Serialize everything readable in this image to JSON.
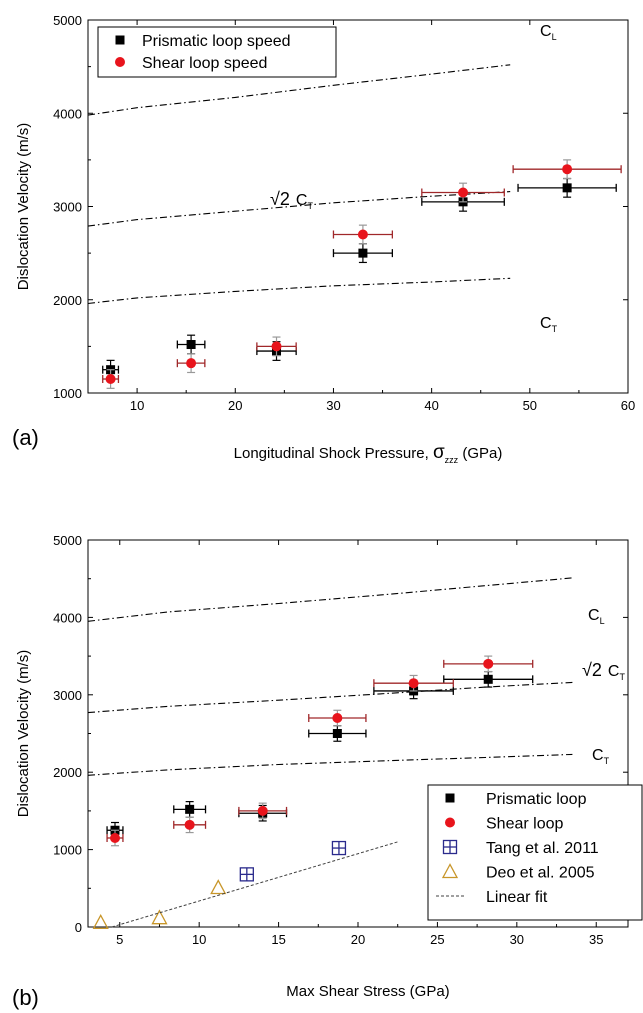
{
  "chart_data": [
    {
      "panel_label": "(a)",
      "type": "scatter",
      "xlabel_text": "Longitudinal Shock Pressure, ",
      "xlabel_symbol": "σ",
      "xlabel_sub": "zzz",
      "xlabel_unit": " (GPa)",
      "ylabel": "Dislocation Velocity (m/s)",
      "xlim": [
        5,
        60
      ],
      "ylim": [
        1000,
        5000
      ],
      "xticks": [
        10,
        20,
        30,
        40,
        50,
        60
      ],
      "yticks": [
        1000,
        2000,
        3000,
        4000,
        5000
      ],
      "grid": false,
      "legend_position": "top-left",
      "series": [
        {
          "name": "Prismatic loop speed",
          "marker": "square",
          "color": "#000000",
          "xerr_color": "#000000",
          "x": [
            7.3,
            15.5,
            24.2,
            33.0,
            43.2,
            53.8
          ],
          "y": [
            1250,
            1520,
            1450,
            2500,
            3050,
            3200
          ],
          "xerr": [
            0.8,
            1.4,
            2.0,
            3.0,
            4.2,
            5.0
          ],
          "yerr": [
            100,
            100,
            100,
            100,
            100,
            100
          ]
        },
        {
          "name": "Shear loop speed",
          "marker": "circle",
          "color": "#e8141c",
          "xerr_color": "#a0282a",
          "x": [
            7.3,
            15.5,
            24.2,
            33.0,
            43.2,
            53.8
          ],
          "y": [
            1150,
            1320,
            1500,
            2700,
            3150,
            3400
          ],
          "xerr": [
            0.8,
            1.4,
            2.0,
            3.0,
            4.2,
            5.5
          ],
          "yerr": [
            100,
            100,
            100,
            100,
            100,
            100
          ]
        }
      ],
      "reference_lines": [
        {
          "label": "C",
          "subscript": "L",
          "prefix": "",
          "x": [
            5,
            10,
            20,
            30,
            40,
            48
          ],
          "y": [
            3980,
            4060,
            4170,
            4300,
            4420,
            4520
          ]
        },
        {
          "label": "C",
          "subscript": "T",
          "prefix": "√2",
          "x": [
            5,
            10,
            20,
            30,
            40,
            48
          ],
          "y": [
            2790,
            2860,
            2950,
            3040,
            3110,
            3160
          ]
        },
        {
          "label": "C",
          "subscript": "T",
          "prefix": "",
          "x": [
            5,
            10,
            20,
            30,
            40,
            48
          ],
          "y": [
            1960,
            2020,
            2090,
            2150,
            2190,
            2230
          ]
        }
      ]
    },
    {
      "panel_label": "(b)",
      "type": "scatter",
      "xlabel_text": "Max Shear Stress (GPa)",
      "ylabel": "Dislocation Velocity (m/s)",
      "xlim": [
        3,
        37
      ],
      "ylim": [
        0,
        5000
      ],
      "xticks": [
        5,
        10,
        15,
        20,
        25,
        30,
        35
      ],
      "yticks": [
        0,
        1000,
        2000,
        3000,
        4000,
        5000
      ],
      "grid": false,
      "legend_position": "bottom-right",
      "series": [
        {
          "name": "Prismatic loop",
          "marker": "square",
          "color": "#000000",
          "xerr_color": "#000000",
          "x": [
            4.7,
            9.4,
            14.0,
            18.7,
            23.5,
            28.2
          ],
          "y": [
            1250,
            1520,
            1470,
            2500,
            3050,
            3200
          ],
          "xerr": [
            0.5,
            1.0,
            1.5,
            1.8,
            2.5,
            2.8
          ],
          "yerr": [
            100,
            100,
            100,
            100,
            100,
            100
          ]
        },
        {
          "name": "Shear loop",
          "marker": "circle",
          "color": "#e8141c",
          "xerr_color": "#a0282a",
          "x": [
            4.7,
            9.4,
            14.0,
            18.7,
            23.5,
            28.2
          ],
          "y": [
            1150,
            1320,
            1500,
            2700,
            3150,
            3400
          ],
          "xerr": [
            0.5,
            1.0,
            1.5,
            1.8,
            2.5,
            2.8
          ],
          "yerr": [
            100,
            100,
            100,
            100,
            100,
            100
          ]
        },
        {
          "name": "Tang et al. 2011",
          "marker": "crossed-square",
          "color": "#2a2a8c",
          "x": [
            13.0,
            18.8
          ],
          "y": [
            680,
            1020
          ]
        },
        {
          "name": "Deo et al. 2005",
          "marker": "open-triangle",
          "color": "#c8962a",
          "x": [
            3.8,
            7.5,
            11.2
          ],
          "y": [
            60,
            120,
            510
          ]
        },
        {
          "name": "Linear fit",
          "marker": "dashed-line",
          "color": "#404040",
          "x": [
            4.5,
            22.5
          ],
          "y": [
            0,
            1100
          ]
        }
      ],
      "reference_lines": [
        {
          "label": "C",
          "subscript": "L",
          "prefix": "",
          "x": [
            3,
            8,
            15,
            22,
            28,
            33.5
          ],
          "y": [
            3950,
            4070,
            4180,
            4300,
            4410,
            4510
          ]
        },
        {
          "label": "C",
          "subscript": "T",
          "prefix": "√2",
          "x": [
            3,
            8,
            15,
            22,
            28,
            33.5
          ],
          "y": [
            2770,
            2850,
            2930,
            3020,
            3100,
            3160
          ]
        },
        {
          "label": "C",
          "subscript": "T",
          "prefix": "",
          "x": [
            3,
            8,
            15,
            22,
            28,
            33.5
          ],
          "y": [
            1960,
            2030,
            2100,
            2150,
            2190,
            2230
          ]
        }
      ]
    }
  ]
}
